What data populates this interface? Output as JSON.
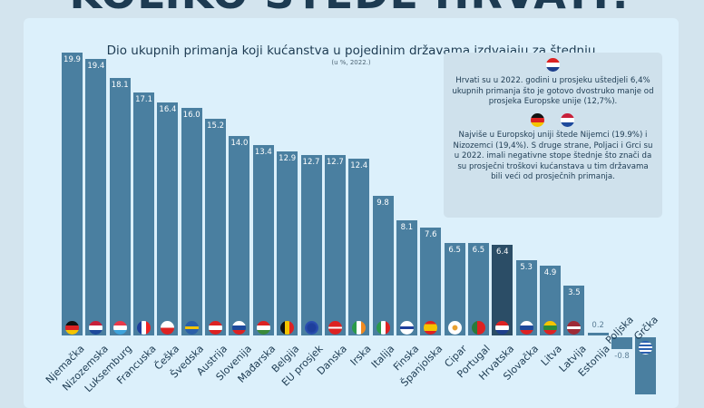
{
  "header": {
    "title": "KOLIKO ŠTEDE HRVATI?"
  },
  "info": {
    "text1": "Hrvati su u 2022. godini u prosjeku uštedjeli 6,4% ukupnih primanja što je gotovo dvostruko manje od prosjeka Europske unije (12,7%).",
    "text2": "Najviše u Europskoj uniji štede Nijemci (19.9%) i Nizozemci (19,4%). S druge strane, Poljaci i Grci su u 2022. imali negativne stope štednje što znači da su prosječni troškovi kućanstava u tim državama bili veći od prosječnih primanja."
  },
  "colors": {
    "bar": "#4a7fa0",
    "highlight": "#2b4d66"
  },
  "chart_data": {
    "type": "bar",
    "title": "Dio ukupnih primanja koji kućanstva u pojedinim državama izdvajaju za štednju",
    "subtitle": "(u %, 2022.)",
    "xlabel": "",
    "ylabel": "",
    "ylim": [
      -4,
      20
    ],
    "highlight": "Hrvatska",
    "categories": [
      "Njemačka",
      "Nizozemska",
      "Luksemburg",
      "Francuska",
      "Češka",
      "Švedska",
      "Austrija",
      "Slovenija",
      "Mađarska",
      "Belgija",
      "EU prosjek",
      "Danska",
      "Irska",
      "Italija",
      "Finska",
      "Španjolska",
      "Cipar",
      "Portugal",
      "Hrvatska",
      "Slovačka",
      "Litva",
      "Latvija",
      "Estonija",
      "Poljska",
      "Grčka"
    ],
    "values": [
      19.9,
      19.4,
      18.1,
      17.1,
      16.4,
      16.0,
      15.2,
      14.0,
      13.4,
      12.9,
      12.7,
      12.7,
      12.4,
      9.8,
      8.1,
      7.6,
      6.5,
      6.5,
      6.4,
      5.3,
      4.9,
      3.5,
      0.2,
      -0.8,
      -4.0
    ],
    "labels": [
      "19.9",
      "19.4",
      "18.1",
      "17.1",
      "16.4",
      "16.0",
      "15.2",
      "14.0",
      "13.4",
      "12.9",
      "12.7",
      "12.7",
      "12.4",
      "9.8",
      "8.1",
      "7.6",
      "6.5",
      "6.5",
      "6.4",
      "5.3",
      "4.9",
      "3.5",
      "0.2",
      "-0.8",
      ""
    ]
  }
}
